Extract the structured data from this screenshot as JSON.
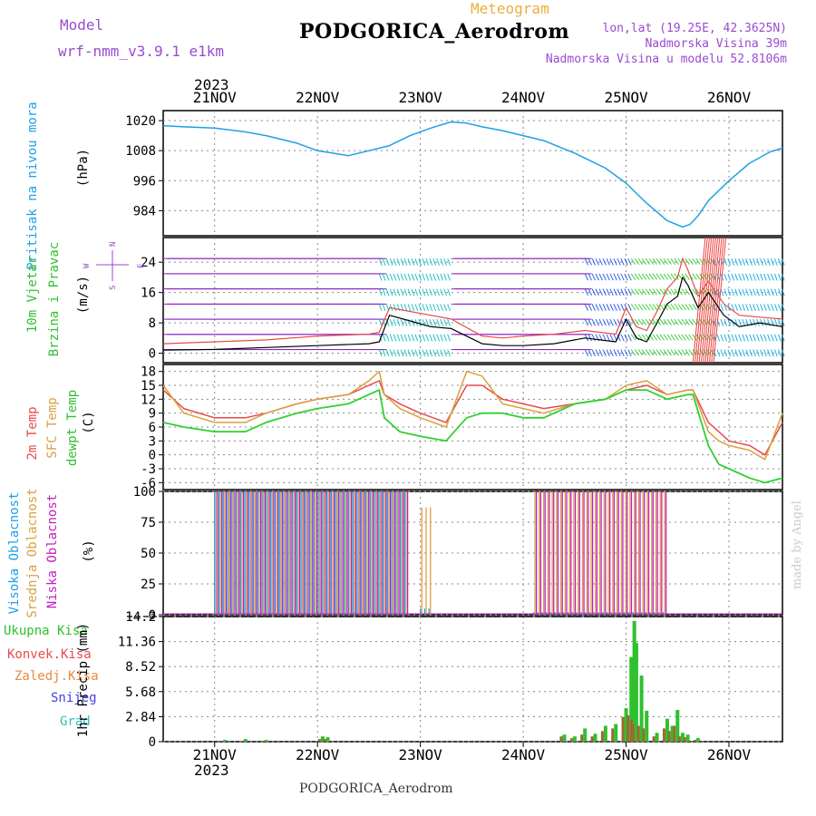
{
  "header": {
    "model_label": "Model",
    "model_value": "wrf-nmm_v3.9.1 e1km",
    "meteogram_label": "Meteogram",
    "station_title": "PODGORICA_Aerodrom",
    "lonlat": "lon,lat (19.25E, 42.3625N)",
    "elevation": "Nadmorska Visina 39m",
    "model_elevation": "Nadmorska Visina u modelu 52.8106m",
    "footer_station": "PODGORICA_Aerodrom",
    "watermark": "made by Angel"
  },
  "time_axis": {
    "year": "2023",
    "day_labels": [
      "21NOV",
      "22NOV",
      "23NOV",
      "24NOV",
      "25NOV",
      "26NOV"
    ],
    "day_positions": [
      0,
      1,
      2,
      3,
      4,
      5
    ],
    "range": [
      -0.5,
      5.52
    ]
  },
  "panels": {
    "pressure": {
      "label": "Pritisak na nivou mora",
      "unit": "(hPa)",
      "ticks": [
        "1020",
        "1008",
        "996",
        "984"
      ]
    },
    "wind": {
      "label1": "10m Vjetar",
      "label2": "Brzina i Pravac",
      "unit": "(m/s)",
      "ticks": [
        "24",
        "16",
        "8",
        "0"
      ],
      "compass_n": "N",
      "compass_w": "W",
      "compass_e": "E",
      "compass_s": "S"
    },
    "temp": {
      "label1": "2m Temp",
      "label2": "SFC Temp",
      "label3": "dewpt Temp",
      "unit": "(C)",
      "ticks": [
        "18",
        "15",
        "12",
        "9",
        "6",
        "3",
        "0",
        "-3",
        "-6"
      ]
    },
    "cloud": {
      "label1": "Visoka Oblacnost",
      "label2": "Srednja Oblacnost",
      "label3": "Niska Oblacnost",
      "unit": "(%)",
      "ticks": [
        "100",
        "75",
        "50",
        "25",
        "0"
      ]
    },
    "precip": {
      "label_total": "Ukupna Kisa",
      "label_conv": "Konvek.Kisa",
      "label_frozen": "Zaledj.Kisa",
      "label_snow": "Snijeg",
      "label_hail": "Grad",
      "unit": "1hr Precip (mm)",
      "ticks": [
        "14.2",
        "11.36",
        "8.52",
        "5.68",
        "2.84",
        "0"
      ]
    }
  },
  "colors": {
    "pressure": "#1ea0e6",
    "wind_speed": "#000000",
    "wind_gust": "#e84a4a",
    "temp2m": "#e84a4a",
    "sfc": "#d9a040",
    "dewpt": "#2fd02f",
    "cloud_high": "#1ea0e6",
    "cloud_mid": "#d9a040",
    "cloud_low": "#c020c0",
    "precip_total": "#2fc02f",
    "precip_conv": "#e84a4a",
    "precip_frozen": "#e88a40",
    "precip_snow": "#4040e0",
    "precip_hail": "#30c0c0",
    "model_text": "#9a4ad0",
    "label_purple": "#9a4ad0",
    "meteogram": "#e8b040"
  },
  "chart_data": [
    {
      "type": "line",
      "title": "Pritisak na nivou mora",
      "ylabel": "(hPa)",
      "ylim": [
        974,
        1024
      ],
      "x": [
        -0.5,
        -0.3,
        0,
        0.3,
        0.5,
        0.8,
        1.0,
        1.15,
        1.3,
        1.5,
        1.7,
        1.9,
        2.1,
        2.3,
        2.45,
        2.6,
        2.8,
        3.0,
        3.2,
        3.5,
        3.8,
        4.0,
        4.2,
        4.4,
        4.55,
        4.62,
        4.7,
        4.8,
        5.0,
        5.2,
        5.4,
        5.52
      ],
      "series": [
        {
          "name": "Pritisak na nivou mora",
          "values": [
            1018,
            1017.5,
            1017,
            1015.5,
            1014,
            1011,
            1008,
            1007,
            1006,
            1008,
            1010,
            1014,
            1017,
            1019.5,
            1019,
            1017.5,
            1016,
            1014,
            1012,
            1007,
            1001,
            995,
            987,
            980,
            977.5,
            978.5,
            982,
            988,
            996,
            1003,
            1007.5,
            1009
          ]
        }
      ]
    },
    {
      "type": "line",
      "title": "10m Vjetar Brzina i Pravac",
      "ylabel": "(m/s)",
      "ylim": [
        -2.5,
        30.5
      ],
      "x": [
        -0.5,
        0,
        0.5,
        1.0,
        1.5,
        1.6,
        1.7,
        1.9,
        2.1,
        2.3,
        2.6,
        2.8,
        3.0,
        3.3,
        3.6,
        3.9,
        4.0,
        4.1,
        4.2,
        4.3,
        4.4,
        4.5,
        4.55,
        4.6,
        4.7,
        4.8,
        4.95,
        5.1,
        5.3,
        5.52
      ],
      "series": [
        {
          "name": "Brzina",
          "values": [
            0.8,
            1.0,
            1.5,
            2.0,
            2.5,
            3.0,
            10.0,
            8.5,
            7.0,
            6.5,
            2.5,
            2.0,
            2.0,
            2.5,
            4.0,
            3.0,
            9.0,
            4.0,
            3.0,
            8.0,
            13.0,
            15.0,
            20.0,
            18.0,
            12.0,
            16.0,
            10.0,
            7.0,
            8.0,
            7.0
          ]
        },
        {
          "name": "Udar",
          "values": [
            2.5,
            3.0,
            3.5,
            4.5,
            5.0,
            5.5,
            12.0,
            11.0,
            10.0,
            9.0,
            4.5,
            4.0,
            4.5,
            5.0,
            6.0,
            5.0,
            12.0,
            7.0,
            6.0,
            11.0,
            17.0,
            20.0,
            25.0,
            22.0,
            15.0,
            19.0,
            13.0,
            10.0,
            9.5,
            9.0
          ]
        }
      ]
    },
    {
      "type": "line",
      "title": "Temperatura",
      "ylabel": "(C)",
      "ylim": [
        -7.5,
        19.5
      ],
      "x": [
        -0.5,
        -0.3,
        0,
        0.3,
        0.5,
        0.8,
        1.0,
        1.3,
        1.5,
        1.6,
        1.65,
        1.8,
        2.0,
        2.25,
        2.45,
        2.6,
        2.8,
        3.0,
        3.2,
        3.5,
        3.8,
        4.0,
        4.2,
        4.4,
        4.6,
        4.65,
        4.8,
        4.9,
        5.0,
        5.2,
        5.35,
        5.52
      ],
      "series": [
        {
          "name": "2m Temp",
          "values": [
            14,
            10,
            8,
            8,
            9,
            11,
            12,
            13,
            15,
            16,
            13,
            11,
            9,
            7,
            15,
            15,
            12,
            11,
            10,
            11,
            12,
            14,
            15,
            13,
            14,
            14,
            7,
            5,
            3,
            2,
            0,
            7
          ]
        },
        {
          "name": "SFC Temp",
          "values": [
            15,
            9,
            7,
            7,
            9,
            11,
            12,
            13,
            16,
            18,
            13,
            10,
            8,
            6,
            18,
            17,
            11,
            10,
            9,
            11,
            12,
            15,
            16,
            13,
            14,
            14,
            5,
            3,
            2,
            1,
            -1,
            9
          ]
        },
        {
          "name": "dewpt Temp",
          "values": [
            7,
            6,
            5,
            5,
            7,
            9,
            10,
            11,
            13,
            14,
            8,
            5,
            4,
            3,
            8,
            9,
            9,
            8,
            8,
            11,
            12,
            14,
            14,
            12,
            13,
            13,
            2,
            -2,
            -3,
            -5,
            -6,
            -5
          ]
        }
      ]
    },
    {
      "type": "bar",
      "title": "Oblacnost",
      "ylabel": "(%)",
      "ylim": [
        0,
        100
      ],
      "x_ranges": [
        [
          0.0,
          1.85
        ],
        [
          2.0,
          2.1
        ],
        [
          3.1,
          4.4
        ]
      ],
      "series": [
        {
          "name": "Visoka Oblacnost",
          "values_by_range": [
            100,
            5,
            2
          ]
        },
        {
          "name": "Srednja Oblacnost",
          "values_by_range": [
            100,
            87,
            100
          ]
        },
        {
          "name": "Niska Oblacnost",
          "values_by_range": [
            100,
            0,
            100
          ]
        }
      ]
    },
    {
      "type": "bar",
      "title": "1hr Precip",
      "ylabel": "1hr Precip (mm)",
      "ylim": [
        0,
        14.2
      ],
      "x": [
        0.1,
        0.3,
        0.5,
        1.05,
        1.1,
        3.4,
        3.5,
        3.6,
        3.7,
        3.8,
        3.9,
        4.0,
        4.05,
        4.08,
        4.1,
        4.15,
        4.2,
        4.3,
        4.4,
        4.45,
        4.5,
        4.55,
        4.6,
        4.7
      ],
      "series": [
        {
          "name": "Ukupna Kisa",
          "values": [
            0.2,
            0.3,
            0.2,
            0.6,
            0.5,
            0.8,
            0.6,
            1.5,
            0.9,
            1.8,
            2.0,
            3.8,
            9.6,
            13.7,
            11.2,
            7.5,
            3.5,
            1.0,
            2.6,
            1.8,
            3.6,
            1.0,
            0.8,
            0.4
          ]
        },
        {
          "name": "Konvek.Kisa",
          "values": [
            0.1,
            0.1,
            0.1,
            0.3,
            0.3,
            0.6,
            0.4,
            0.8,
            0.6,
            1.2,
            1.5,
            2.8,
            3.0,
            2.5,
            2.0,
            1.8,
            1.5,
            0.6,
            1.5,
            1.2,
            1.8,
            0.6,
            0.5,
            0.2
          ]
        }
      ]
    }
  ]
}
